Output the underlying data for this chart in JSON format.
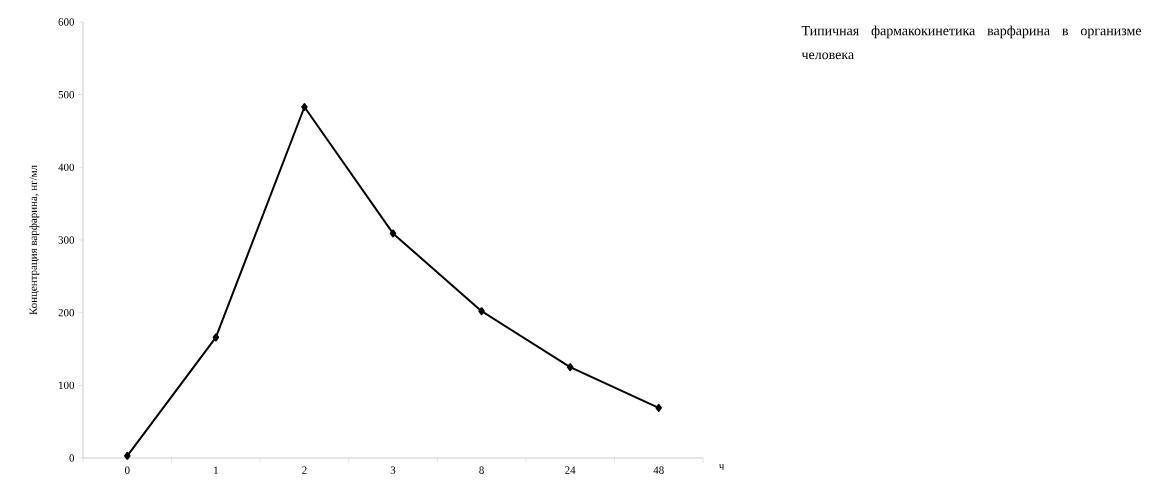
{
  "chart_data": {
    "type": "line",
    "title": "Типичная фармакокинетика варфарина в организме человека",
    "xlabel": "ч",
    "ylabel": "Концентрация варфарина, нг/мл",
    "categories": [
      "0",
      "1",
      "2",
      "3",
      "8",
      "24",
      "48"
    ],
    "values": [
      3,
      166,
      483,
      309,
      202,
      125,
      69
    ],
    "color": "#000000",
    "marker": "diamond",
    "line_style": "solid",
    "ylim": [
      0,
      600
    ],
    "yticks": [
      0,
      100,
      200,
      300,
      400,
      500,
      600
    ]
  }
}
